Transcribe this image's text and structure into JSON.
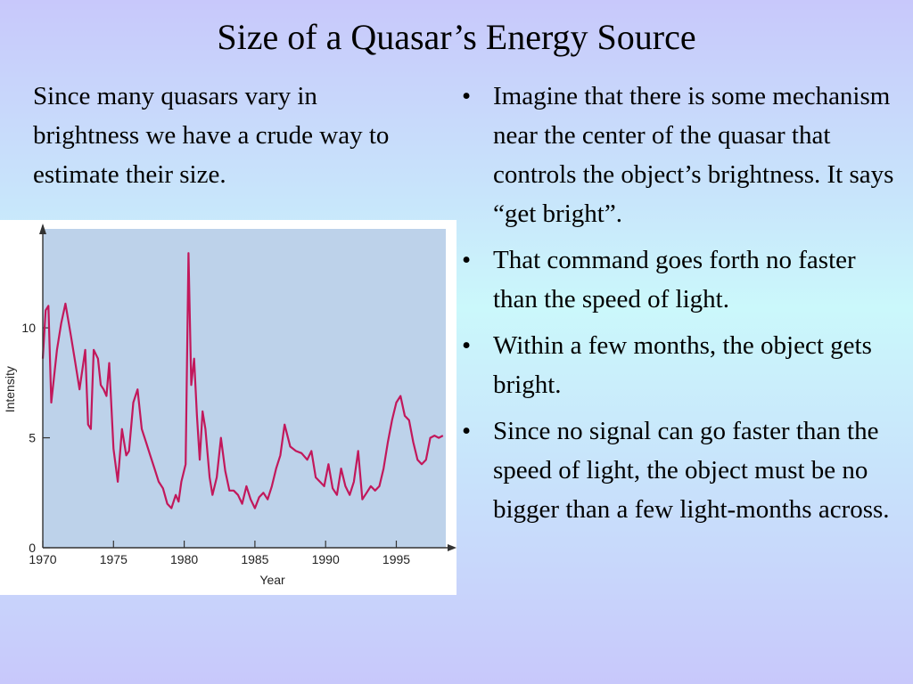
{
  "slide": {
    "title": "Size of a Quasar’s Energy Source",
    "intro": "Since many quasars vary in brightness we have a crude way to estimate their size.",
    "bullets": [
      "Imagine that there is some mechanism near the center of the quasar that controls the object’s brightness.  It says “get bright”.",
      "That command goes forth no faster than the speed of light.",
      "Within a few months, the object gets bright.",
      "Since no signal can go faster than the speed of light, the object must be no bigger than a few light-months across."
    ],
    "bullet_glyph": "•"
  },
  "colors": {
    "plot_background": "#bdd2ea",
    "series_line": "#c2185b",
    "axis": "#333333"
  },
  "chart_data": {
    "type": "line",
    "xlabel": "Year",
    "ylabel": "Intensity",
    "xlim": [
      1970,
      1998.5
    ],
    "ylim": [
      0,
      14.5
    ],
    "x_ticks": [
      1970,
      1975,
      1980,
      1985,
      1990,
      1995
    ],
    "y_ticks": [
      0,
      5,
      10
    ],
    "series": [
      {
        "x": [
          1970.0,
          1970.2,
          1970.4,
          1970.6,
          1970.8,
          1971.0,
          1971.3,
          1971.6,
          1972.0,
          1972.3,
          1972.6,
          1973.0,
          1973.2,
          1973.4,
          1973.6,
          1973.9,
          1974.1,
          1974.3,
          1974.5,
          1974.7,
          1975.0,
          1975.3,
          1975.6,
          1975.9,
          1976.1,
          1976.4,
          1976.7,
          1977.0,
          1977.3,
          1977.6,
          1977.9,
          1978.2,
          1978.5,
          1978.8,
          1979.1,
          1979.4,
          1979.6,
          1979.8,
          1980.1,
          1980.3,
          1980.5,
          1980.7,
          1980.9,
          1981.1,
          1981.3,
          1981.5,
          1981.8,
          1982.0,
          1982.3,
          1982.6,
          1982.9,
          1983.2,
          1983.5,
          1983.8,
          1984.1,
          1984.4,
          1984.7,
          1985.0,
          1985.3,
          1985.6,
          1985.9,
          1986.2,
          1986.5,
          1986.8,
          1987.1,
          1987.5,
          1987.9,
          1988.3,
          1988.7,
          1989.0,
          1989.3,
          1989.6,
          1989.9,
          1990.2,
          1990.5,
          1990.8,
          1991.1,
          1991.4,
          1991.7,
          1992.0,
          1992.3,
          1992.6,
          1992.9,
          1993.2,
          1993.5,
          1993.8,
          1994.1,
          1994.4,
          1994.7,
          1995.0,
          1995.3,
          1995.6,
          1995.9,
          1996.2,
          1996.5,
          1996.8,
          1997.1,
          1997.4,
          1997.7,
          1998.0,
          1998.3
        ],
        "y": [
          8.6,
          10.8,
          11.0,
          6.6,
          7.8,
          9.0,
          10.2,
          11.1,
          9.6,
          8.4,
          7.2,
          9.0,
          5.6,
          5.4,
          9.0,
          8.6,
          7.4,
          7.2,
          6.9,
          8.4,
          4.5,
          3.0,
          5.4,
          4.2,
          4.4,
          6.6,
          7.2,
          5.4,
          4.8,
          4.2,
          3.6,
          3.0,
          2.7,
          2.0,
          1.8,
          2.4,
          2.1,
          3.0,
          3.8,
          13.4,
          7.4,
          8.6,
          6.0,
          4.0,
          6.2,
          5.4,
          3.2,
          2.4,
          3.2,
          5.0,
          3.5,
          2.6,
          2.6,
          2.4,
          2.0,
          2.8,
          2.2,
          1.8,
          2.3,
          2.5,
          2.2,
          2.8,
          3.6,
          4.2,
          5.6,
          4.6,
          4.4,
          4.3,
          4.0,
          4.4,
          3.2,
          3.0,
          2.8,
          3.8,
          2.7,
          2.4,
          3.6,
          2.8,
          2.4,
          3.0,
          4.4,
          2.2,
          2.5,
          2.8,
          2.6,
          2.8,
          3.6,
          4.8,
          5.8,
          6.6,
          6.9,
          6.0,
          5.8,
          4.8,
          4.0,
          3.8,
          4.0,
          5.0,
          5.1,
          5.0,
          5.1
        ]
      }
    ]
  }
}
